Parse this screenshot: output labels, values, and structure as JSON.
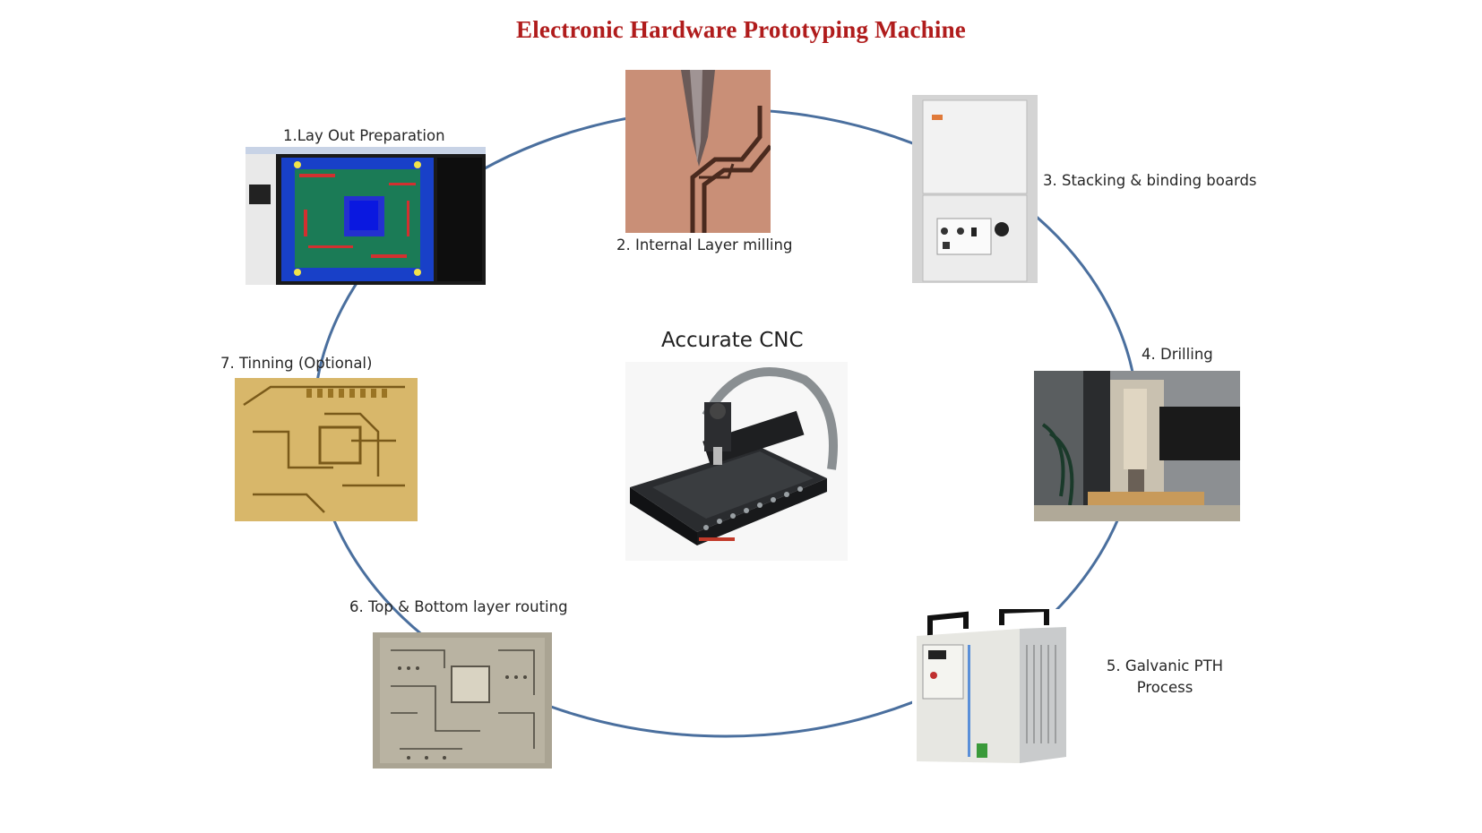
{
  "title": "Electronic Hardware Prototyping Machine",
  "center": {
    "label": "Accurate CNC",
    "image": "cnc-machine-photo"
  },
  "steps": [
    {
      "label": "1.Lay Out Preparation",
      "image": "pcb-layout-software-screenshot"
    },
    {
      "label": "2. Internal Layer milling",
      "image": "milling-tool-on-copper-photo"
    },
    {
      "label": "3. Stacking & binding boards",
      "image": "press-machine-photo"
    },
    {
      "label": "4. Drilling",
      "image": "drilling-machine-photo"
    },
    {
      "label_line1": "5. Galvanic PTH",
      "label_line2": "Process",
      "image": "galvanic-bath-unit-photo"
    },
    {
      "label": "6. Top & Bottom layer routing",
      "image": "routed-pcb-photo"
    },
    {
      "label": "7. Tinning (Optional)",
      "image": "tinned-pcb-photo"
    }
  ],
  "colors": {
    "title": "#b01c1c",
    "ring": "#4a6f9e"
  }
}
